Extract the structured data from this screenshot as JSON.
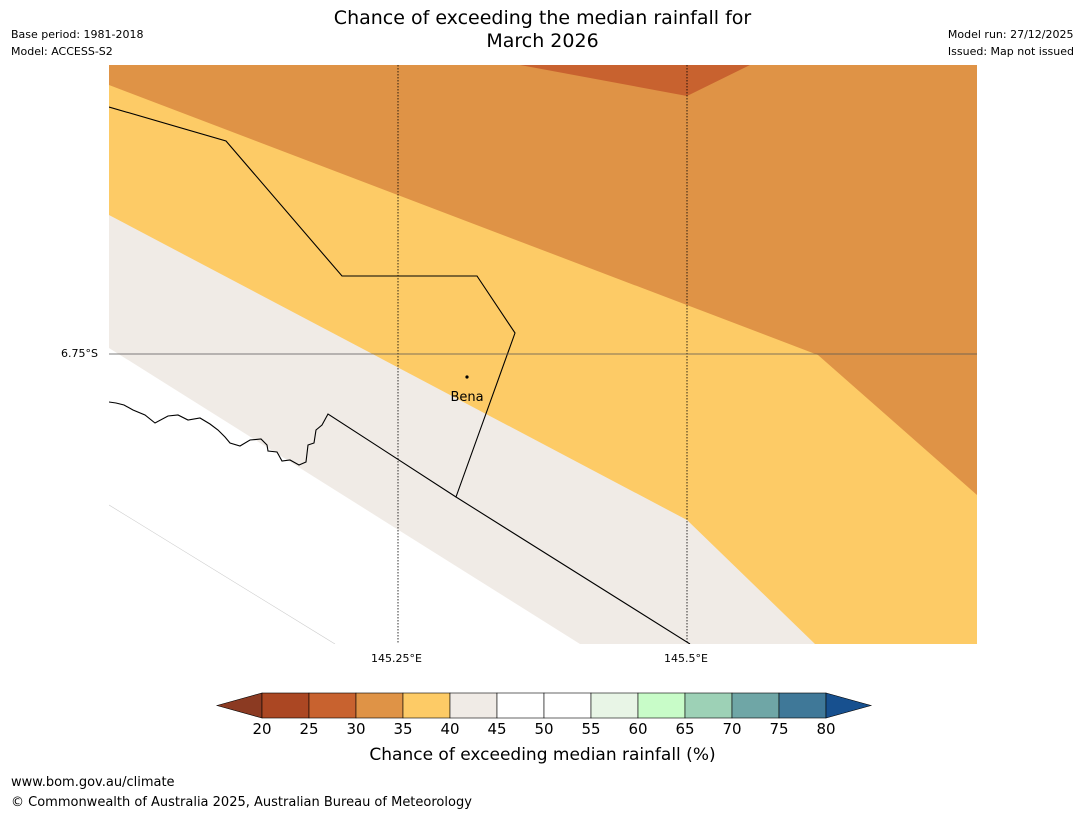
{
  "title": {
    "line1": "Chance of exceeding the median rainfall for",
    "line2": "March 2026"
  },
  "meta_left": {
    "base_period": "Base period: 1981-2018",
    "model": "Model: ACCESS-S2"
  },
  "meta_right": {
    "model_run": "Model run: 27/12/2025",
    "issued": "Issued: Map not issued"
  },
  "map": {
    "lat_label": "6.75°S",
    "lon_labels": [
      "145.25°E",
      "145.5°E"
    ],
    "place": {
      "name": "Bena"
    },
    "colors": {
      "c25_30": "#c8622f",
      "c30_35": "#df9346",
      "c35_40": "#fdcb66",
      "c40_45": "#f0ebe6",
      "land_white": "#ffffff"
    }
  },
  "colorbar": {
    "title": "Chance of exceeding median rainfall (%)",
    "ticks": [
      "20",
      "25",
      "30",
      "35",
      "40",
      "45",
      "50",
      "55",
      "60",
      "65",
      "70",
      "75",
      "80"
    ],
    "under_color": "#8b3a22",
    "over_color": "#17508f",
    "bin_colors": [
      "#ab4723",
      "#c8622f",
      "#df9346",
      "#fdcb66",
      "#f0ebe6",
      "#ffffff",
      "#ffffff",
      "#e8f5e6",
      "#c8fcc8",
      "#9dd1b6",
      "#6fa6a6",
      "#3f7898"
    ]
  },
  "footer": {
    "url": "www.bom.gov.au/climate",
    "copyright": "© Commonwealth of Australia 2025, Australian Bureau of Meteorology"
  }
}
